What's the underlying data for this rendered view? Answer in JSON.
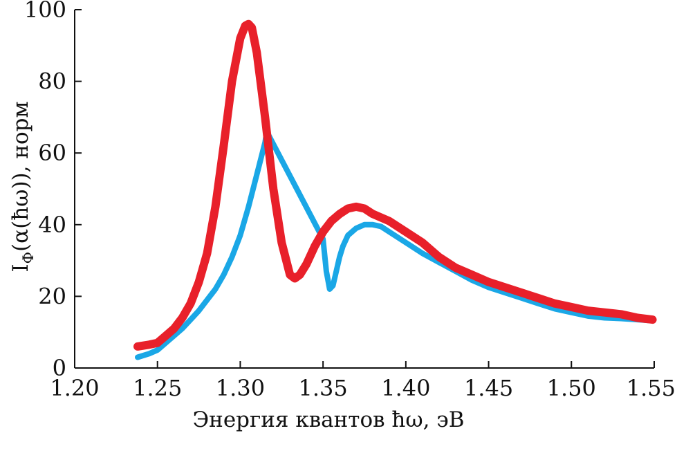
{
  "chart_data": {
    "type": "line",
    "title": "",
    "xlabel": "Энергия квантов ħω, эВ",
    "ylabel": "Iф(α(ħω)), норм",
    "ylabel_main": "I",
    "ylabel_sub": "Ф",
    "ylabel_rest": "(α(ħω)), норм",
    "xlim": [
      1.2,
      1.55
    ],
    "ylim": [
      0,
      100
    ],
    "x_ticks": [
      "1.20",
      "1.25",
      "1.30",
      "1.35",
      "1.40",
      "1.45",
      "1.50",
      "1.55"
    ],
    "y_ticks": [
      "0",
      "20",
      "40",
      "60",
      "80",
      "100"
    ],
    "grid": false,
    "legend": "none",
    "series": [
      {
        "color": "#1aa7e6",
        "x": [
          1.238,
          1.245,
          1.25,
          1.255,
          1.26,
          1.265,
          1.27,
          1.275,
          1.28,
          1.285,
          1.29,
          1.295,
          1.3,
          1.305,
          1.31,
          1.315,
          1.316,
          1.35,
          1.352,
          1.354,
          1.356,
          1.358,
          1.36,
          1.362,
          1.365,
          1.37,
          1.375,
          1.38,
          1.385,
          1.39,
          1.4,
          1.41,
          1.42,
          1.43,
          1.44,
          1.45,
          1.46,
          1.47,
          1.48,
          1.49,
          1.5,
          1.51,
          1.52,
          1.53,
          1.54,
          1.549
        ],
        "y": [
          3,
          4,
          5,
          7,
          9,
          11,
          13.5,
          16,
          19,
          22,
          26,
          31,
          37,
          45,
          54,
          63,
          66,
          36,
          27,
          22,
          23,
          27,
          31,
          34,
          37,
          39,
          40,
          40,
          39.5,
          38,
          35,
          32,
          29.5,
          27,
          24.5,
          22.5,
          21,
          19.5,
          18,
          16.5,
          15.5,
          14.5,
          14,
          13.8,
          13.5,
          13.2
        ]
      },
      {
        "color": "#e8202a",
        "x": [
          1.238,
          1.245,
          1.25,
          1.255,
          1.26,
          1.265,
          1.27,
          1.275,
          1.28,
          1.285,
          1.29,
          1.295,
          1.3,
          1.303,
          1.305,
          1.307,
          1.31,
          1.315,
          1.32,
          1.325,
          1.33,
          1.333,
          1.336,
          1.34,
          1.345,
          1.35,
          1.355,
          1.36,
          1.365,
          1.37,
          1.375,
          1.38,
          1.39,
          1.4,
          1.41,
          1.42,
          1.43,
          1.44,
          1.45,
          1.46,
          1.47,
          1.48,
          1.49,
          1.5,
          1.51,
          1.52,
          1.53,
          1.54,
          1.549
        ],
        "y": [
          6,
          6.5,
          7,
          9,
          11,
          14,
          18,
          24,
          32,
          45,
          62,
          80,
          92,
          95.5,
          96,
          95,
          88,
          70,
          50,
          35,
          26,
          25,
          26,
          29,
          34,
          38,
          41,
          43,
          44.5,
          45,
          44.5,
          43,
          41,
          38,
          35,
          31,
          28,
          26,
          24,
          22.5,
          21,
          19.5,
          18,
          17,
          16,
          15.5,
          15,
          14,
          13.5
        ]
      }
    ]
  }
}
